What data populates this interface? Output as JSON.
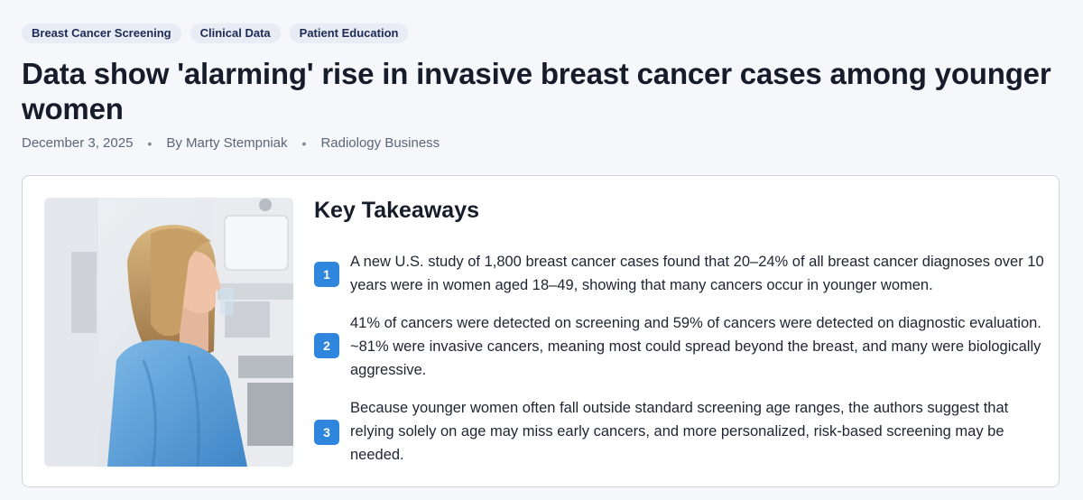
{
  "tags": [
    "Breast Cancer Screening",
    "Clinical Data",
    "Patient Education"
  ],
  "title": "Data show 'alarming' rise in invasive breast cancer cases among younger women",
  "meta": {
    "date": "December 3, 2025",
    "author": "By Marty Stempniak",
    "source": "Radiology Business",
    "separator": "•"
  },
  "key_takeaways": {
    "heading": "Key Takeaways",
    "items": [
      {
        "number": "1",
        "text": "A new U.S. study of 1,800 breast cancer cases found that 20–24% of all breast cancer diagnoses over 10 years were in women aged 18–49, showing that many cancers occur in younger women."
      },
      {
        "number": "2",
        "text": "41% of cancers were detected on screening and 59% of cancers were detected on diagnostic evaluation. ~81% were invasive cancers, meaning most could spread beyond the breast, and many were biologically aggressive."
      },
      {
        "number": "3",
        "text": "Because younger women often fall outside standard screening age ranges, the authors suggest that relying solely on age may miss early cancers, and more personalized, risk-based screening may be needed."
      }
    ]
  },
  "image": {
    "subject": "woman-in-blue-gown-at-mammography-machine"
  },
  "colors": {
    "accent": "#2f86dd",
    "tag_bg": "#e7ecf5",
    "gown": "#5ea3d9"
  }
}
